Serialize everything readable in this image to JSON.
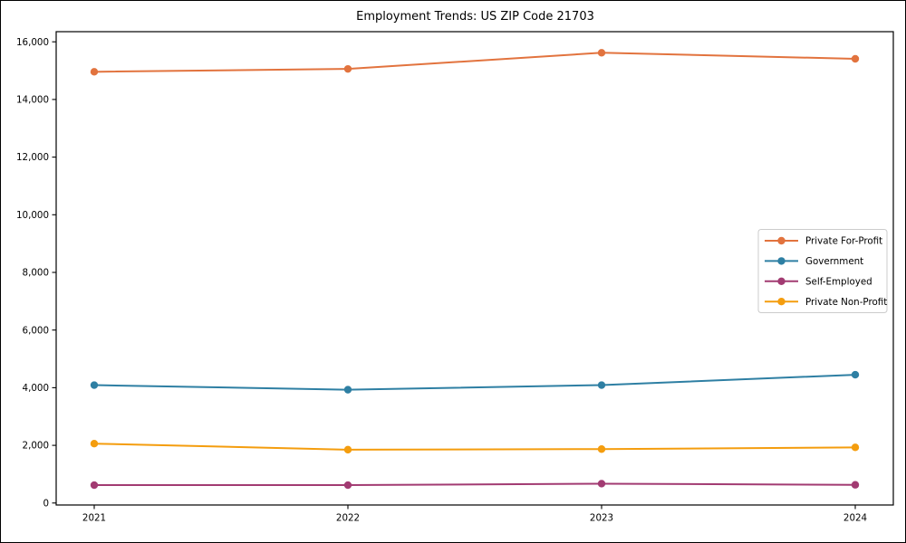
{
  "chart_data": {
    "type": "line",
    "title": "Employment Trends: US ZIP Code 21703",
    "xlabel": "",
    "ylabel": "",
    "x_labels": [
      "2021",
      "2022",
      "2023",
      "2024"
    ],
    "series": [
      {
        "name": "Private For-Profit",
        "color": "#E2733E",
        "values": [
          14960,
          15060,
          15620,
          15410
        ]
      },
      {
        "name": "Government",
        "color": "#2E7FA3",
        "values": [
          4090,
          3930,
          4090,
          4450
        ]
      },
      {
        "name": "Self-Employed",
        "color": "#A23B72",
        "values": [
          620,
          620,
          670,
          630
        ]
      },
      {
        "name": "Private Non-Profit",
        "color": "#F49D0E",
        "values": [
          2060,
          1850,
          1870,
          1930
        ]
      }
    ],
    "yticks": [
      0,
      2000,
      4000,
      6000,
      8000,
      10000,
      12000,
      14000,
      16000
    ],
    "ytick_labels": [
      "0",
      "2,000",
      "4,000",
      "6,000",
      "8,000",
      "10,000",
      "12,000",
      "14,000",
      "16,000"
    ],
    "ylim": [
      0,
      16400
    ],
    "grid": false,
    "legend_position": "center-right",
    "marker_style": "circle",
    "axis_color": "#000000",
    "legend_border_color": "#cccccc",
    "legend_background": "#ffffff"
  }
}
